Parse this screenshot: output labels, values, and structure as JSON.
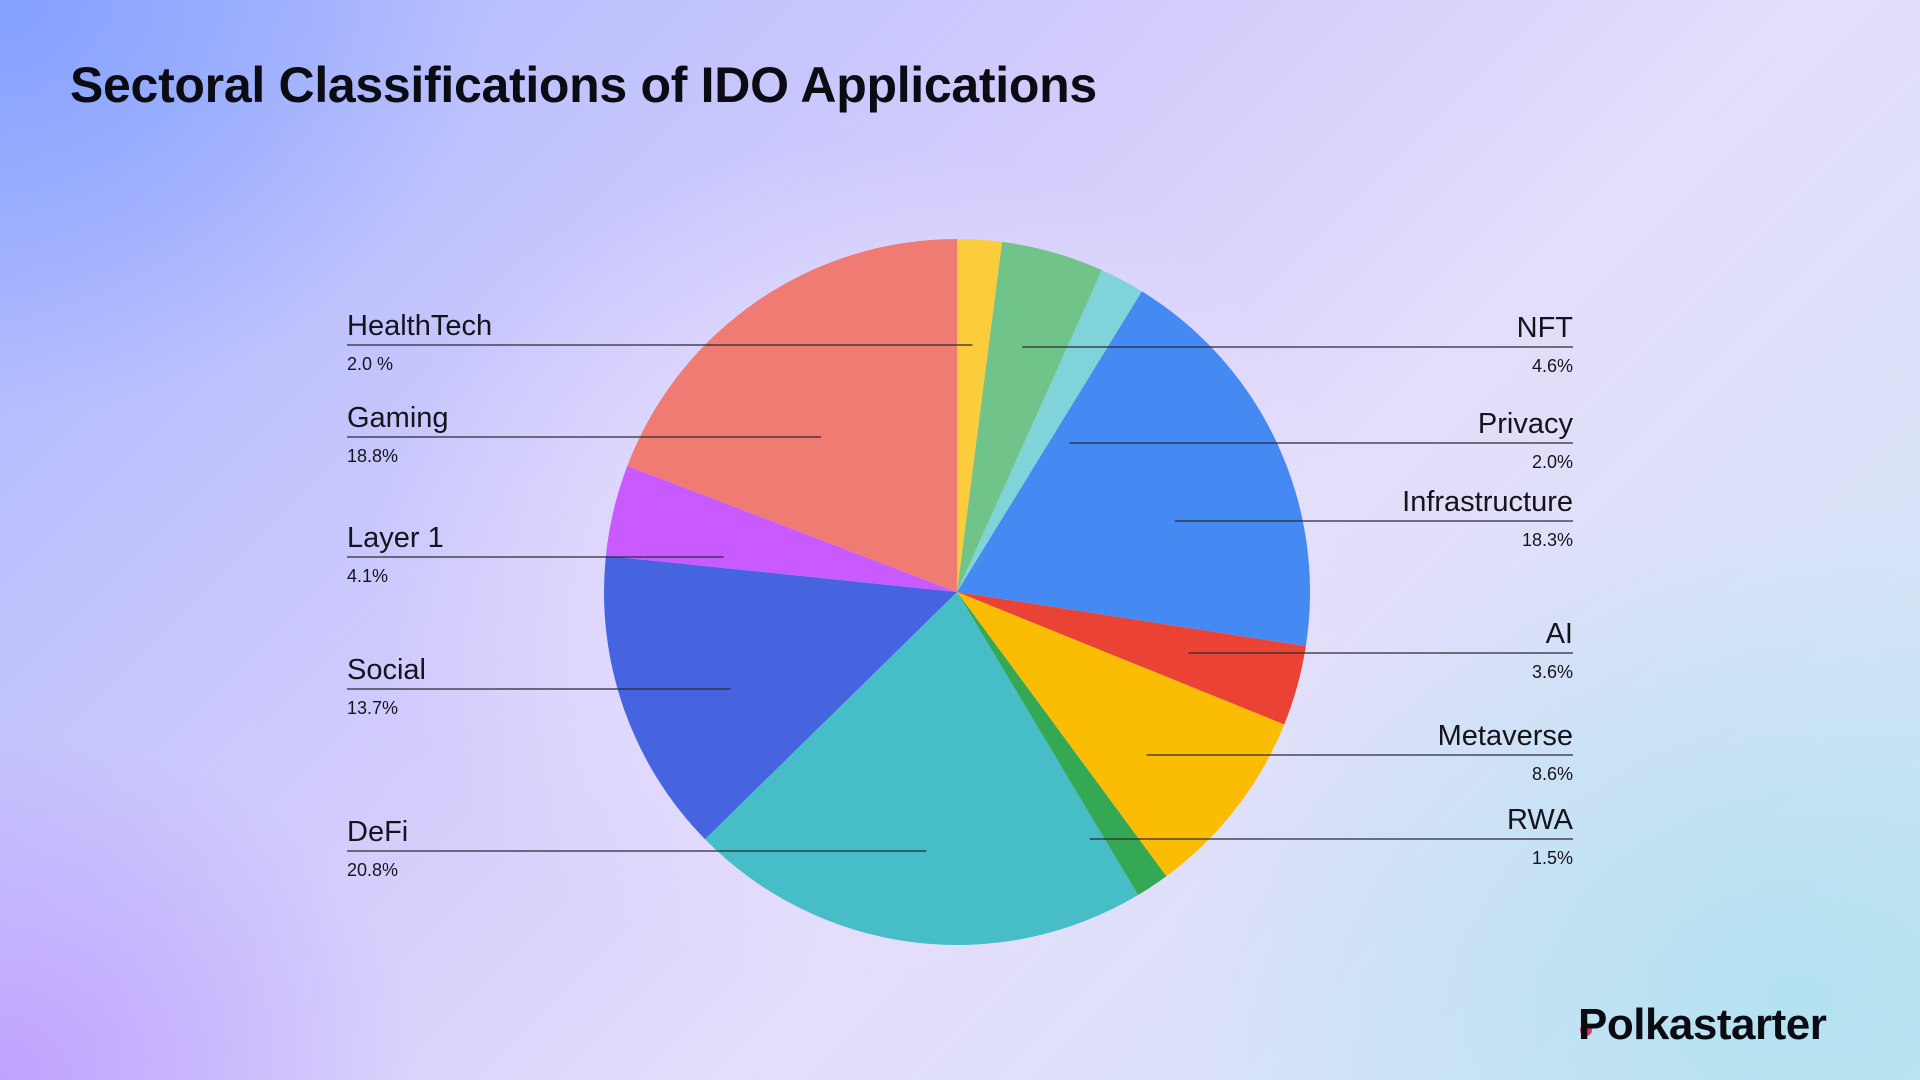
{
  "title": "Sectoral Classifications of IDO Applications",
  "logo": {
    "text": "Polkastarter",
    "dot_color": "#f0305d"
  },
  "chart_data": {
    "type": "pie",
    "title": "Sectoral Classifications of IDO Applications",
    "start_angle_deg": 0,
    "direction": "clockwise",
    "slices": [
      {
        "name": "HealthTech",
        "value": 2.0,
        "pct_label": "2.0 %",
        "color": "#fbcd3d"
      },
      {
        "name": "NFT",
        "value": 4.6,
        "pct_label": "4.6%",
        "color": "#70c48a"
      },
      {
        "name": "Privacy",
        "value": 2.0,
        "pct_label": "2.0%",
        "color": "#80d4d9"
      },
      {
        "name": "Infrastructure",
        "value": 18.3,
        "pct_label": "18.3%",
        "color": "#4589f2"
      },
      {
        "name": "AI",
        "value": 3.6,
        "pct_label": "3.6%",
        "color": "#ea4335"
      },
      {
        "name": "Metaverse",
        "value": 8.6,
        "pct_label": "8.6%",
        "color": "#fbbc04"
      },
      {
        "name": "RWA",
        "value": 1.5,
        "pct_label": "1.5%",
        "color": "#34a853"
      },
      {
        "name": "DeFi",
        "value": 20.8,
        "pct_label": "20.8%",
        "color": "#47bec7"
      },
      {
        "name": "Social",
        "value": 13.7,
        "pct_label": "13.7%",
        "color": "#4664e0"
      },
      {
        "name": "Layer 1",
        "value": 4.1,
        "pct_label": "4.1%",
        "color": "#c95aff"
      },
      {
        "name": "Gaming",
        "value": 18.8,
        "pct_label": "18.8%",
        "color": "#f07b72"
      }
    ],
    "legend_placement": "callouts left and right"
  }
}
